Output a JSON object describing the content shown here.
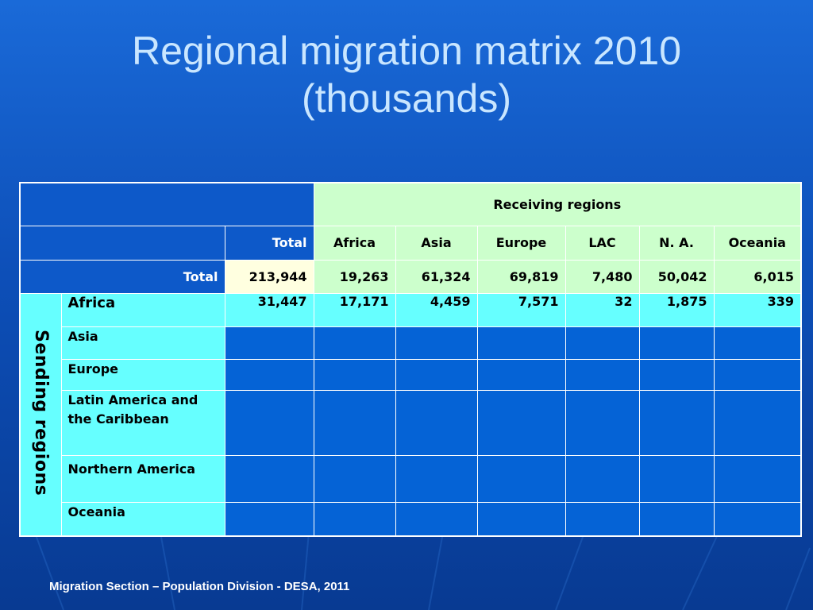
{
  "title": {
    "line1": "Regional migration matrix 2010",
    "line2": "(thousands)"
  },
  "table": {
    "receiving_header": "Receiving regions",
    "sending_header": "Sending regions",
    "total_col_label": "Total",
    "total_row_label": "Total",
    "columns": [
      "Africa",
      "Asia",
      "Europe",
      "LAC",
      "N. A.",
      "Oceania"
    ],
    "total_row": {
      "grand_total": "213,944",
      "values": [
        "19,263",
        "61,324",
        "69,819",
        "7,480",
        "50,042",
        "6,015"
      ]
    },
    "rows": [
      {
        "label": "Africa",
        "total": "31,447",
        "values": [
          "17,171",
          "4,459",
          "7,571",
          "32",
          "1,875",
          "339"
        ]
      },
      {
        "label": "Asia",
        "total": "",
        "values": [
          "",
          "",
          "",
          "",
          "",
          ""
        ]
      },
      {
        "label": "Europe",
        "total": "",
        "values": [
          "",
          "",
          "",
          "",
          "",
          ""
        ]
      },
      {
        "label": "Latin America and the Caribbean",
        "total": "",
        "values": [
          "",
          "",
          "",
          "",
          "",
          ""
        ]
      },
      {
        "label": "Northern America",
        "total": "",
        "values": [
          "",
          "",
          "",
          "",
          "",
          ""
        ]
      },
      {
        "label": "Oceania",
        "total": "",
        "values": [
          "",
          "",
          "",
          "",
          "",
          ""
        ]
      }
    ]
  },
  "footer": "Migration Section – Population Division - DESA, 2011",
  "colors": {
    "background": "#0d4fb8",
    "header_green": "#ccffcc",
    "row_cyan": "#66ffff",
    "total_yellow": "#ffffe0",
    "empty_cell": "#0563d6"
  }
}
